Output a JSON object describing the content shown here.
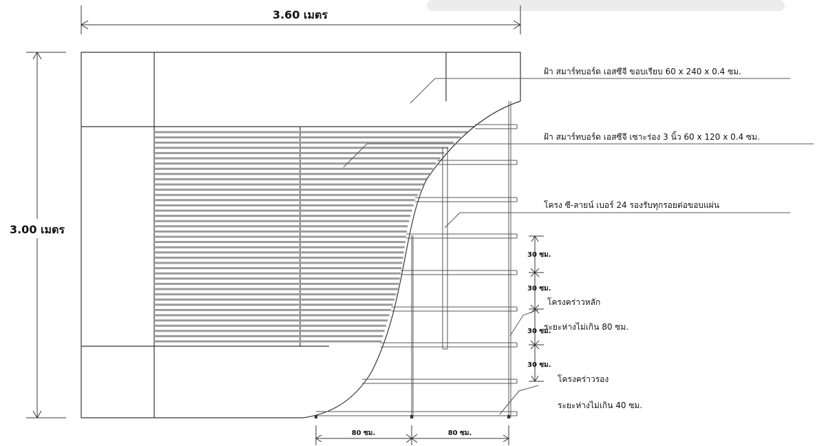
{
  "dimensions": {
    "width_label": "3.60 เมตร",
    "height_label": "3.00 เมตร",
    "spacing_30": [
      "30 ซม.",
      "30 ซม.",
      "30 ซม.",
      "30 ซม."
    ],
    "spacing_80": [
      "80 ซม.",
      "80 ซม."
    ]
  },
  "callouts": {
    "ceiling_plain": "ฝ้า สมาร์ทบอร์ด เอสซีจี ขอบเรียบ 60 x 240 x 0.4 ซม.",
    "ceiling_grooved": "ฝ้า สมาร์ทบอร์ด เอสซีจี เซาะร่อง 3 นิ้ว 60 x 120 x 0.4 ซม.",
    "c_line_frame": "โครง ซี-ลายน์ เบอร์ 24 รองรับทุกรอยต่อขอบแผ่น",
    "main_runner": "โครงคร่าวหลัก",
    "main_runner_spacing": "ระยะห่างไม่เกิน 80 ซม.",
    "cross_runner": "โครงคร่าวรอง",
    "cross_runner_spacing": "ระยะห่างไม่เกิน 40 ซม."
  }
}
